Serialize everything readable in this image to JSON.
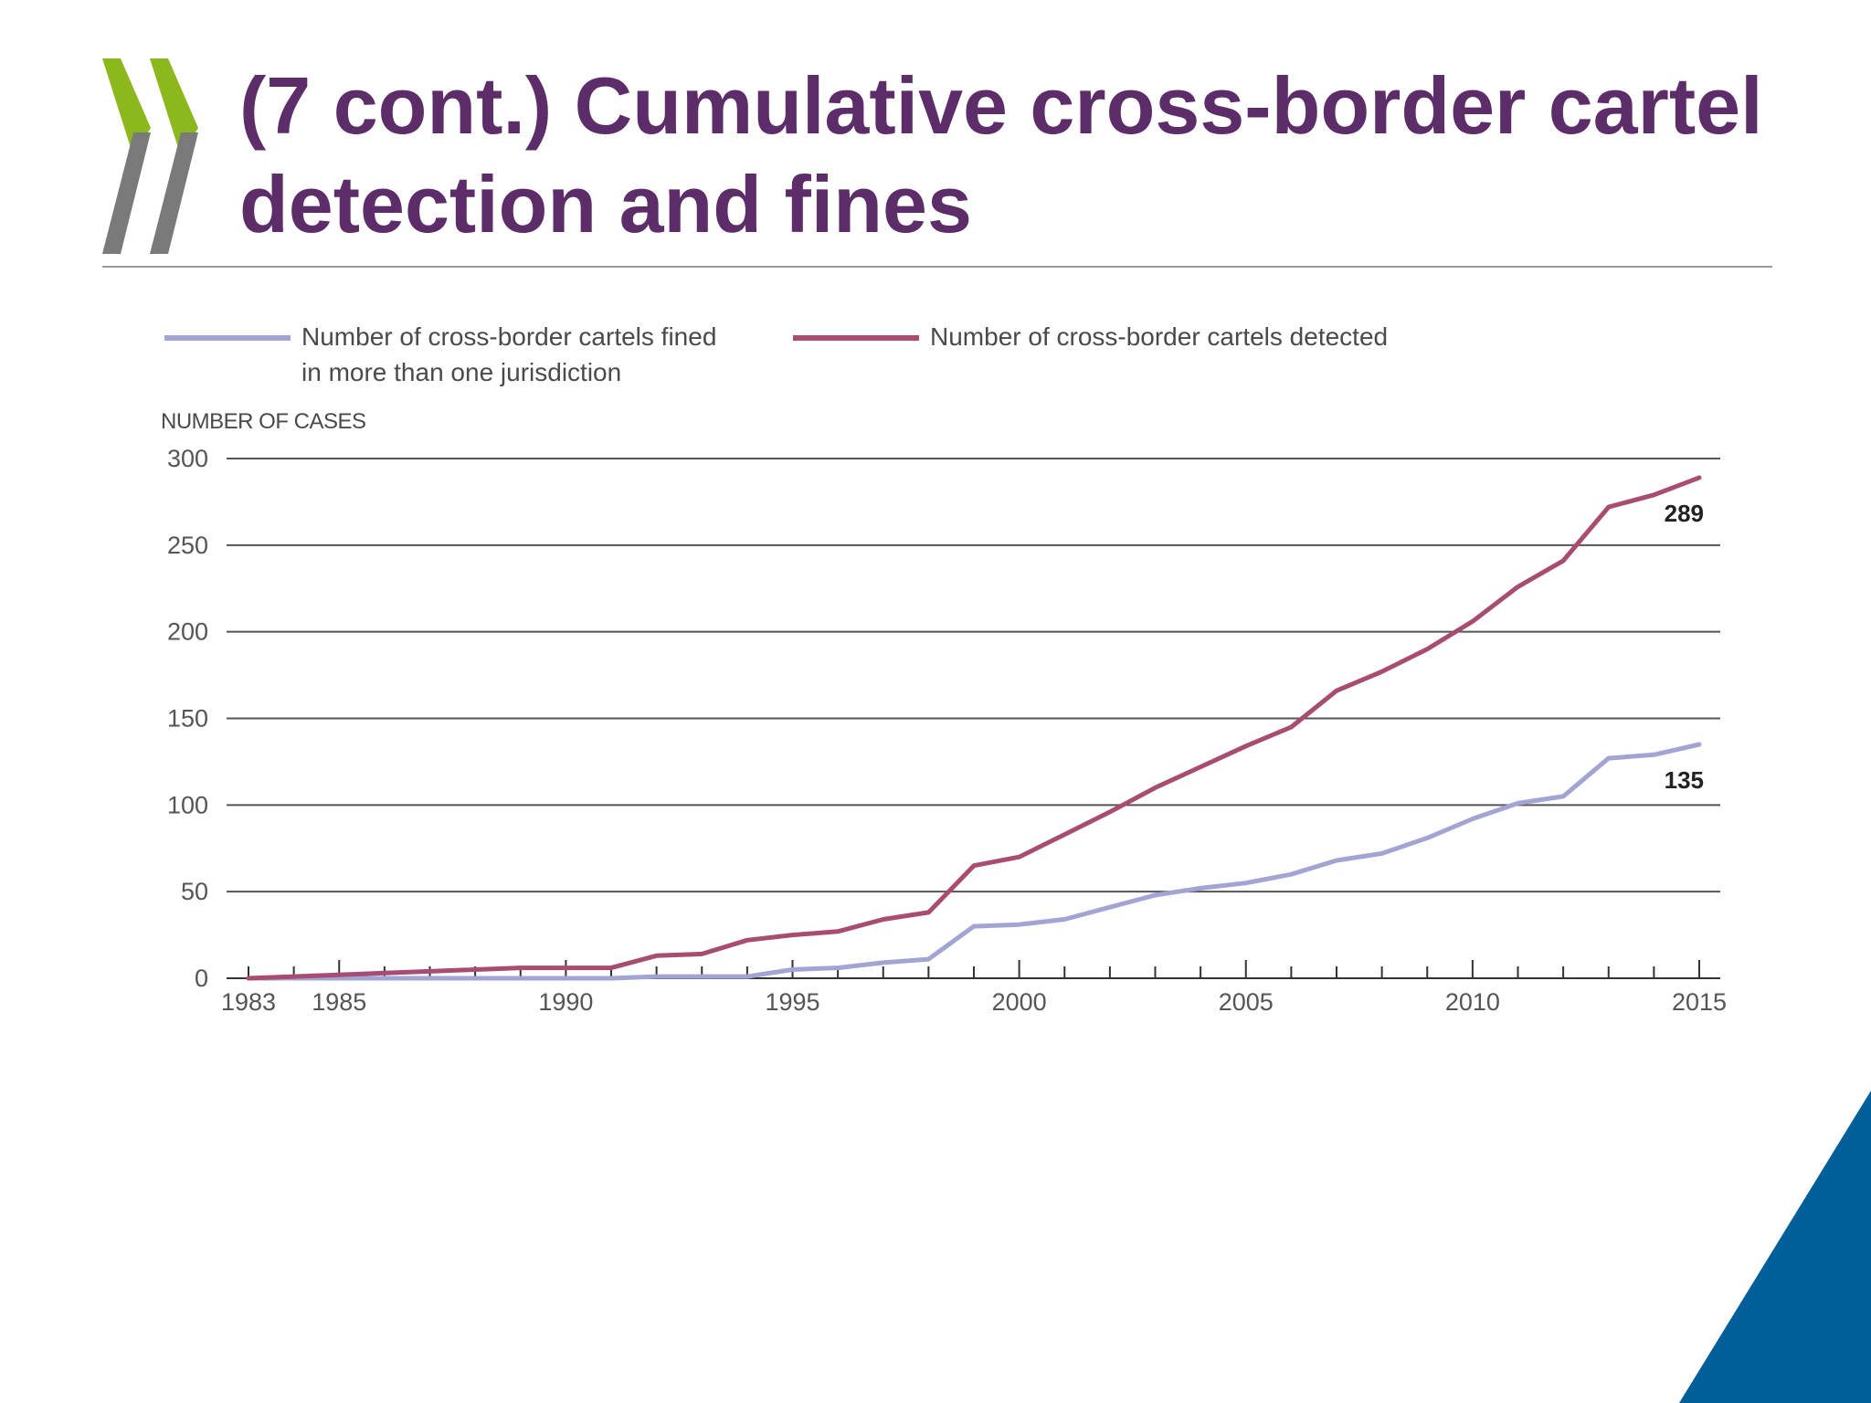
{
  "slide": {
    "title": "(7 cont.) Cumulative cross-border cartel detection and fines",
    "colors": {
      "title": "#5c2d69",
      "chevron_green": "#8cb81e",
      "chevron_grey": "#7a7a7a",
      "corner_blue": "#005f99",
      "rule": "#9a9a9a"
    }
  },
  "chart_data": {
    "type": "line",
    "ylabel": "NUMBER OF CASES",
    "ylim": [
      0,
      300
    ],
    "yticks": [
      0,
      50,
      100,
      150,
      200,
      250,
      300
    ],
    "xlim": [
      1983,
      2015
    ],
    "xtick_labels": [
      1983,
      1985,
      1990,
      1995,
      2000,
      2005,
      2010,
      2015
    ],
    "grid": true,
    "legend_position": "top",
    "series": [
      {
        "name": "Number of cross-border cartels fined in more than one jurisdiction",
        "legend_lines": [
          "Number of cross-border cartels fined",
          "in more than one jurisdiction"
        ],
        "color": "#a2a4d4",
        "end_label": "135",
        "points": [
          [
            1983,
            0
          ],
          [
            1984,
            0
          ],
          [
            1985,
            0
          ],
          [
            1986,
            0
          ],
          [
            1987,
            0
          ],
          [
            1988,
            0
          ],
          [
            1989,
            0
          ],
          [
            1990,
            0
          ],
          [
            1991,
            0
          ],
          [
            1992,
            1
          ],
          [
            1993,
            1
          ],
          [
            1994,
            1
          ],
          [
            1995,
            5
          ],
          [
            1996,
            6
          ],
          [
            1997,
            9
          ],
          [
            1998,
            11
          ],
          [
            1999,
            30
          ],
          [
            2000,
            31
          ],
          [
            2001,
            34
          ],
          [
            2002,
            41
          ],
          [
            2003,
            48
          ],
          [
            2004,
            52
          ],
          [
            2005,
            55
          ],
          [
            2006,
            60
          ],
          [
            2007,
            68
          ],
          [
            2008,
            72
          ],
          [
            2009,
            81
          ],
          [
            2010,
            92
          ],
          [
            2011,
            101
          ],
          [
            2012,
            105
          ],
          [
            2013,
            127
          ],
          [
            2014,
            129
          ],
          [
            2015,
            135
          ]
        ]
      },
      {
        "name": "Number of cross-border cartels detected",
        "legend_lines": [
          "Number of cross-border cartels detected"
        ],
        "color": "#a84c71",
        "end_label": "289",
        "points": [
          [
            1983,
            0
          ],
          [
            1984,
            1
          ],
          [
            1985,
            2
          ],
          [
            1986,
            3
          ],
          [
            1987,
            4
          ],
          [
            1988,
            5
          ],
          [
            1989,
            6
          ],
          [
            1990,
            6
          ],
          [
            1991,
            6
          ],
          [
            1992,
            13
          ],
          [
            1993,
            14
          ],
          [
            1994,
            22
          ],
          [
            1995,
            25
          ],
          [
            1996,
            27
          ],
          [
            1997,
            34
          ],
          [
            1998,
            38
          ],
          [
            1999,
            65
          ],
          [
            2000,
            70
          ],
          [
            2001,
            83
          ],
          [
            2002,
            96
          ],
          [
            2003,
            110
          ],
          [
            2004,
            122
          ],
          [
            2005,
            134
          ],
          [
            2006,
            145
          ],
          [
            2007,
            166
          ],
          [
            2008,
            177
          ],
          [
            2009,
            190
          ],
          [
            2010,
            206
          ],
          [
            2011,
            226
          ],
          [
            2012,
            241
          ],
          [
            2013,
            272
          ],
          [
            2014,
            279
          ],
          [
            2015,
            289
          ]
        ]
      }
    ]
  }
}
